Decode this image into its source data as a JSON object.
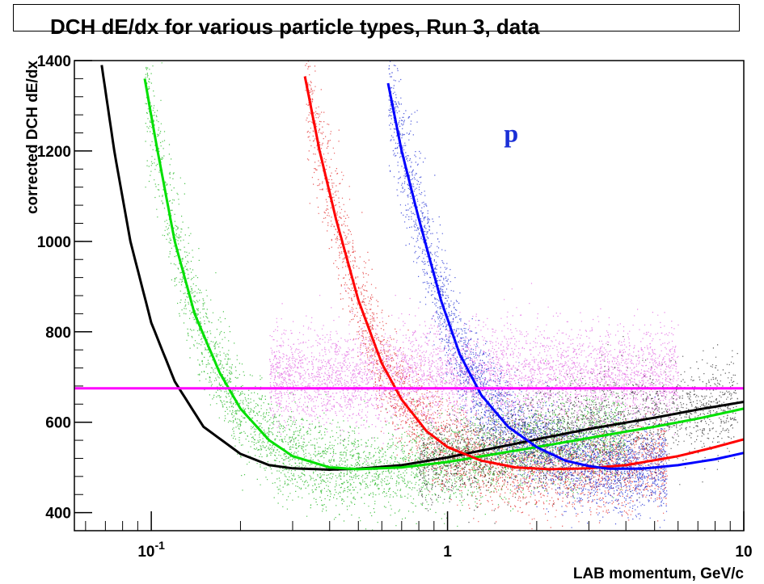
{
  "chart_data": {
    "type": "scatter",
    "title": "DCH dE/dx for various particle types, Run 3, data",
    "xlabel": "LAB momentum, GeV/c",
    "ylabel": "corrected DCH dE/dx",
    "xscale": "log",
    "xlim": [
      0.055,
      10
    ],
    "ylim": [
      360,
      1400
    ],
    "x_ticks": [
      {
        "value": 0.1,
        "base": "10",
        "exp": "-1"
      },
      {
        "value": 1,
        "base": "1",
        "exp": ""
      },
      {
        "value": 10,
        "base": "10",
        "exp": ""
      }
    ],
    "y_ticks": [
      400,
      600,
      800,
      1000,
      1200,
      1400
    ],
    "grid": false,
    "annotation": {
      "text": "p",
      "color": "#1a2fd6",
      "x": 1.55,
      "y": 1220
    },
    "series": [
      {
        "color": "#000000",
        "curve": [
          [
            0.068,
            1390
          ],
          [
            0.075,
            1200
          ],
          [
            0.085,
            1000
          ],
          [
            0.1,
            820
          ],
          [
            0.12,
            690
          ],
          [
            0.15,
            590
          ],
          [
            0.2,
            530
          ],
          [
            0.25,
            505
          ],
          [
            0.3,
            498
          ],
          [
            0.4,
            495
          ],
          [
            0.5,
            497
          ],
          [
            0.7,
            505
          ],
          [
            1,
            522
          ],
          [
            2,
            562
          ],
          [
            3,
            585
          ],
          [
            5,
            610
          ],
          [
            7,
            628
          ],
          [
            10,
            645
          ]
        ]
      },
      {
        "color": "#00e000",
        "curve": [
          [
            0.095,
            1360
          ],
          [
            0.105,
            1200
          ],
          [
            0.12,
            1000
          ],
          [
            0.14,
            840
          ],
          [
            0.17,
            710
          ],
          [
            0.2,
            630
          ],
          [
            0.25,
            560
          ],
          [
            0.3,
            525
          ],
          [
            0.4,
            500
          ],
          [
            0.5,
            496
          ],
          [
            0.7,
            500
          ],
          [
            1,
            512
          ],
          [
            2,
            545
          ],
          [
            3,
            565
          ],
          [
            5,
            590
          ],
          [
            7,
            608
          ],
          [
            10,
            630
          ]
        ]
      },
      {
        "color": "#ff0000",
        "curve": [
          [
            0.33,
            1365
          ],
          [
            0.37,
            1200
          ],
          [
            0.42,
            1050
          ],
          [
            0.5,
            870
          ],
          [
            0.6,
            730
          ],
          [
            0.7,
            650
          ],
          [
            0.85,
            580
          ],
          [
            1,
            545
          ],
          [
            1.3,
            515
          ],
          [
            1.7,
            500
          ],
          [
            2.2,
            496
          ],
          [
            3,
            498
          ],
          [
            4,
            505
          ],
          [
            6,
            525
          ],
          [
            8,
            545
          ],
          [
            10,
            562
          ]
        ]
      },
      {
        "color": "#0000ff",
        "curve": [
          [
            0.63,
            1350
          ],
          [
            0.7,
            1200
          ],
          [
            0.8,
            1050
          ],
          [
            0.95,
            870
          ],
          [
            1.1,
            750
          ],
          [
            1.3,
            660
          ],
          [
            1.6,
            590
          ],
          [
            2,
            545
          ],
          [
            2.5,
            515
          ],
          [
            3,
            503
          ],
          [
            3.5,
            497
          ],
          [
            4.5,
            497
          ],
          [
            6,
            505
          ],
          [
            8,
            518
          ],
          [
            10,
            532
          ]
        ]
      },
      {
        "color": "#ff00ff",
        "curve": [
          [
            0.055,
            675
          ],
          [
            10,
            675
          ]
        ]
      }
    ],
    "clouds": [
      {
        "color": "#10b010",
        "x_range": [
          0.08,
          4.0
        ],
        "count": 4500
      },
      {
        "color": "#e060e0",
        "x_range": [
          0.25,
          6.0
        ],
        "count": 5000
      },
      {
        "color": "#e02020",
        "x_range": [
          0.3,
          5.5
        ],
        "count": 4500
      },
      {
        "color": "#1020d0",
        "x_range": [
          0.6,
          5.5
        ],
        "count": 4500
      },
      {
        "color": "#202020",
        "x_range": [
          0.8,
          9.5
        ],
        "count": 2500
      }
    ]
  }
}
